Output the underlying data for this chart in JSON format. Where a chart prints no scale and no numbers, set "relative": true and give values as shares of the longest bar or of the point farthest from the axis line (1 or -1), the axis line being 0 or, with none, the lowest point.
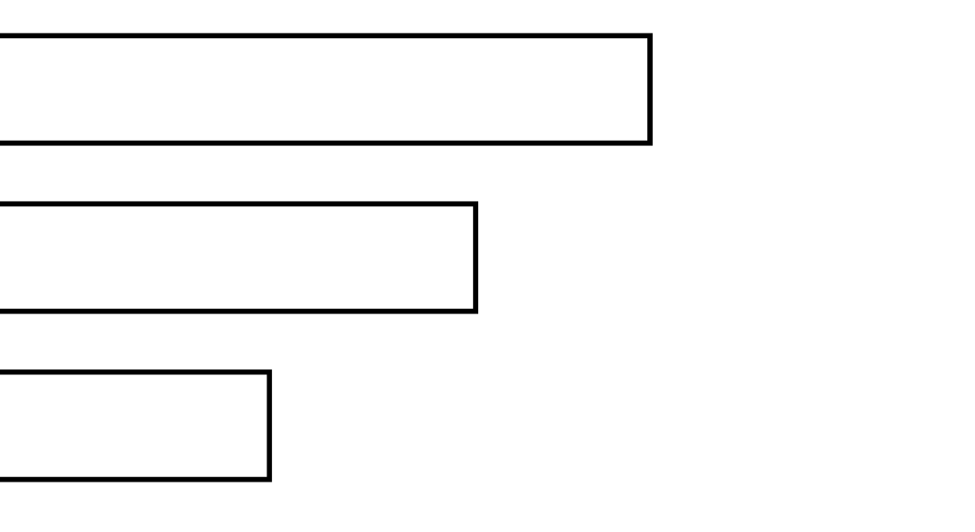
{
  "chart_data": {
    "type": "bar",
    "orientation": "horizontal",
    "relative": true,
    "categories": [
      null,
      null,
      null
    ],
    "values": [
      1,
      0.733,
      0.417
    ],
    "color": "#000000",
    "tick_labels": false
  }
}
